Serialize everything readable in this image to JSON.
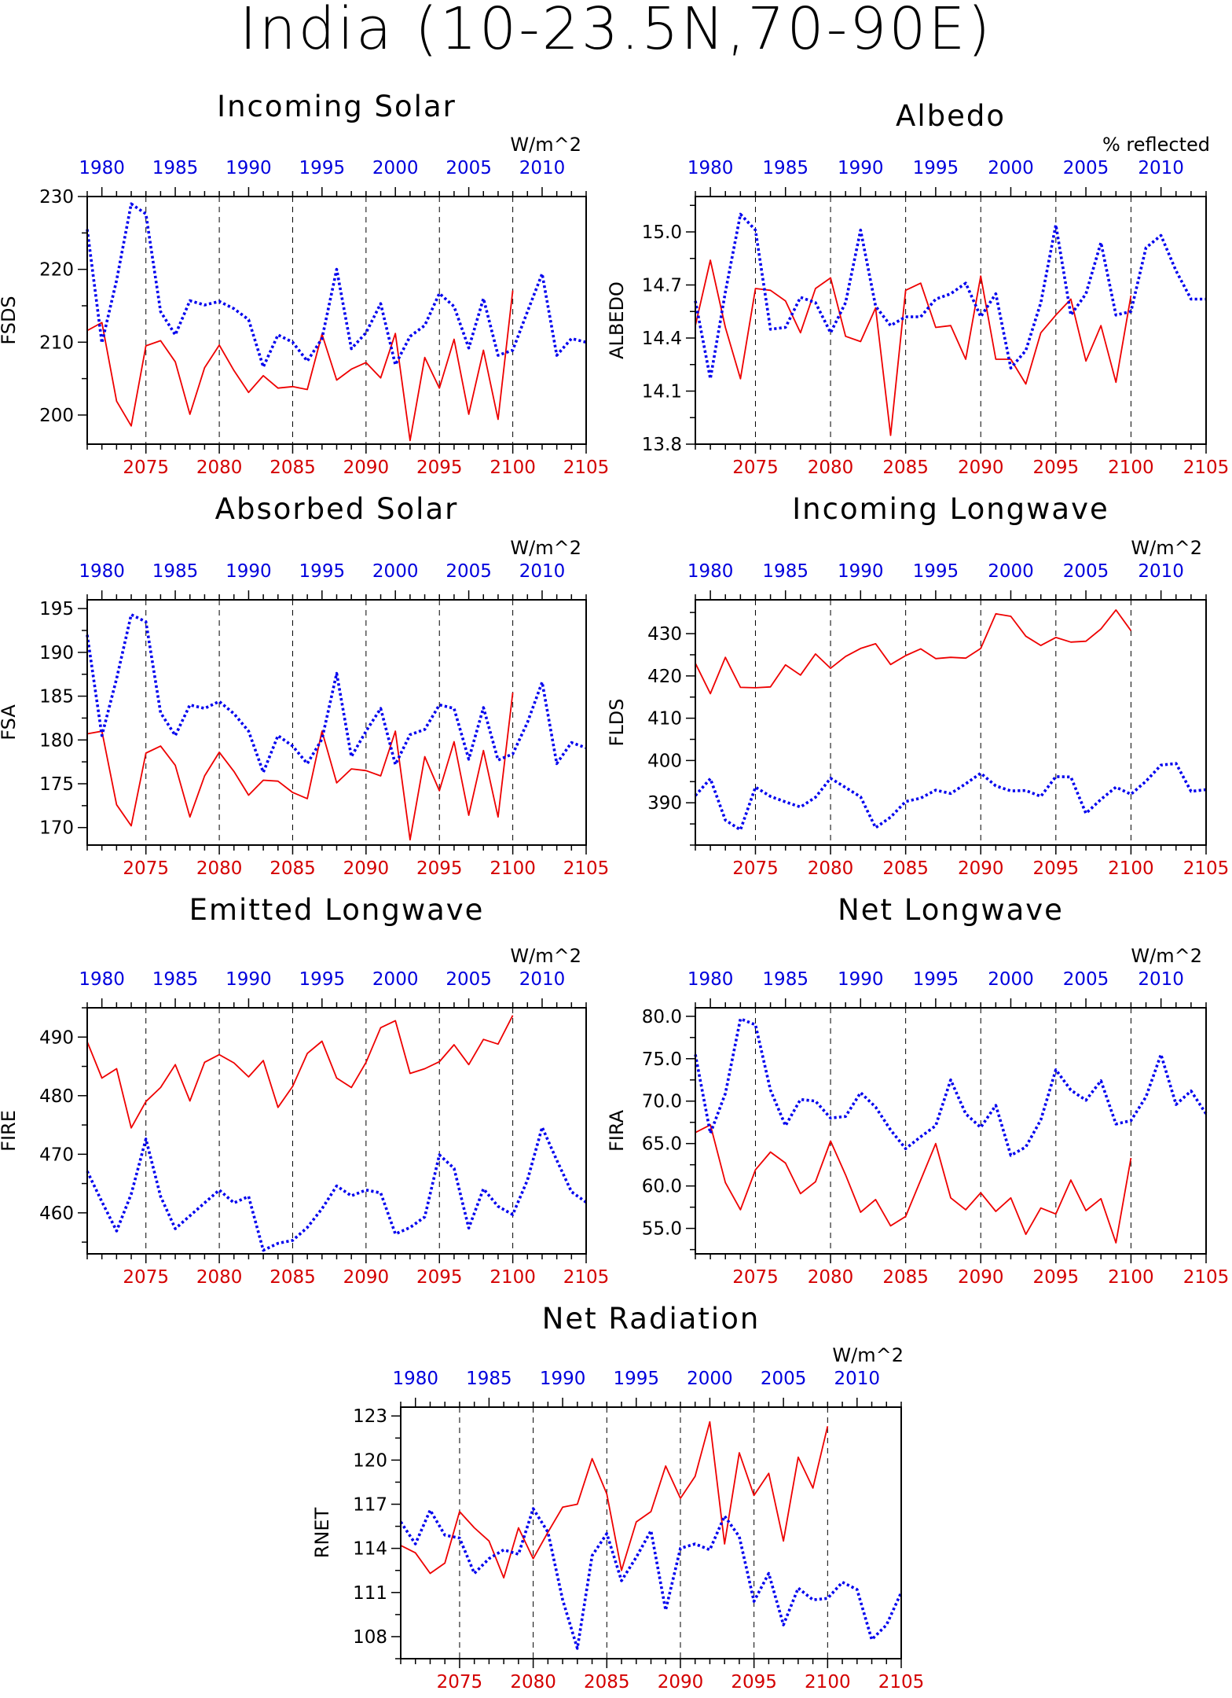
{
  "title": "India (10-23.5N,70-90E)",
  "colors": {
    "future": "#ee0000",
    "past": "#0000ee",
    "axis": "#000000"
  },
  "chart_data": [
    {
      "type": "line",
      "title": "Incoming Solar",
      "units": "W/m^2",
      "ylabel": "FSDS",
      "ylim": [
        196,
        230
      ],
      "yticks": [
        200,
        210,
        220,
        230
      ],
      "ytick_labels": [
        "200",
        "210",
        "220",
        "230"
      ],
      "x_bottom": {
        "range": [
          2071,
          2105
        ],
        "ticks": [
          2075,
          2080,
          2085,
          2090,
          2095,
          2100,
          2105
        ]
      },
      "x_top": {
        "range": [
          1979,
          2013
        ],
        "ticks": [
          1980,
          1985,
          1990,
          1995,
          2000,
          2005,
          2010
        ]
      },
      "series": [
        {
          "period": "2071-2100",
          "axis": "bottom",
          "style": "solid",
          "values": [
            211.6,
            212.7,
            201.9,
            198.5,
            209.5,
            210.2,
            207.3,
            200.1,
            206.5,
            209.6,
            206.1,
            203.1,
            205.4,
            203.7,
            203.9,
            203.5,
            211.1,
            204.8,
            206.3,
            207.2,
            205.1,
            211.2,
            196.5,
            207.9,
            203.7,
            210.4,
            200.1,
            208.9,
            199.4,
            217.1
          ]
        },
        {
          "period": "1979-2013",
          "axis": "top",
          "style": "dotted",
          "values": [
            225.5,
            209.9,
            218.5,
            229.0,
            227.6,
            214.2,
            211.0,
            215.7,
            215.1,
            215.6,
            214.6,
            213.1,
            206.6,
            211.0,
            210.0,
            207.4,
            210.5,
            220.0,
            209.1,
            211.3,
            215.3,
            206.9,
            210.8,
            212.3,
            216.7,
            214.9,
            209.2,
            216.0,
            208.2,
            208.9,
            214.2,
            219.4,
            208.2,
            210.5,
            210.0
          ]
        }
      ]
    },
    {
      "type": "line",
      "title": "Albedo",
      "units": "% reflected",
      "ylabel": "ALBEDO",
      "ylim": [
        13.8,
        15.2
      ],
      "yticks": [
        13.8,
        14.1,
        14.4,
        14.7,
        15.0
      ],
      "ytick_labels": [
        "13.8",
        "14.1",
        "14.4",
        "14.7",
        "15.0"
      ],
      "x_bottom": {
        "range": [
          2071,
          2105
        ],
        "ticks": [
          2075,
          2080,
          2085,
          2090,
          2095,
          2100,
          2105
        ]
      },
      "x_top": {
        "range": [
          1979,
          2013
        ],
        "ticks": [
          1980,
          1985,
          1990,
          1995,
          2000,
          2005,
          2010
        ]
      },
      "series": [
        {
          "period": "2071-2100",
          "axis": "bottom",
          "style": "solid",
          "values": [
            14.47,
            14.84,
            14.46,
            14.17,
            14.68,
            14.67,
            14.61,
            14.43,
            14.68,
            14.74,
            14.41,
            14.38,
            14.57,
            13.85,
            14.67,
            14.71,
            14.46,
            14.47,
            14.28,
            14.75,
            14.28,
            14.28,
            14.14,
            14.43,
            14.53,
            14.62,
            14.27,
            14.47,
            14.15,
            14.64
          ]
        },
        {
          "period": "1979-2013",
          "axis": "top",
          "style": "dotted",
          "values": [
            14.61,
            14.17,
            14.66,
            15.1,
            15.01,
            14.45,
            14.46,
            14.63,
            14.6,
            14.43,
            14.6,
            15.01,
            14.58,
            14.47,
            14.52,
            14.52,
            14.62,
            14.65,
            14.71,
            14.52,
            14.65,
            14.23,
            14.33,
            14.6,
            15.04,
            14.53,
            14.65,
            14.94,
            14.53,
            14.55,
            14.91,
            14.98,
            14.78,
            14.62,
            14.62
          ]
        }
      ]
    },
    {
      "type": "line",
      "title": "Absorbed Solar",
      "units": "W/m^2",
      "ylabel": "FSA",
      "ylim": [
        168,
        196
      ],
      "yticks": [
        170,
        175,
        180,
        185,
        190,
        195
      ],
      "ytick_labels": [
        "170",
        "175",
        "180",
        "185",
        "190",
        "195"
      ],
      "x_bottom": {
        "range": [
          2071,
          2105
        ],
        "ticks": [
          2075,
          2080,
          2085,
          2090,
          2095,
          2100,
          2105
        ]
      },
      "x_top": {
        "range": [
          1979,
          2013
        ],
        "ticks": [
          1980,
          1985,
          1990,
          1995,
          2000,
          2005,
          2010
        ]
      },
      "series": [
        {
          "period": "2071-2100",
          "axis": "bottom",
          "style": "solid",
          "values": [
            180.7,
            181.0,
            172.6,
            170.2,
            178.5,
            179.3,
            177.1,
            171.2,
            175.9,
            178.6,
            176.4,
            173.7,
            175.4,
            175.3,
            174.0,
            173.3,
            181.0,
            175.1,
            176.7,
            176.5,
            175.9,
            181.0,
            168.6,
            178.1,
            174.2,
            179.8,
            171.4,
            178.8,
            171.2,
            185.4
          ]
        },
        {
          "period": "1979-2013",
          "axis": "top",
          "style": "dotted",
          "values": [
            192.0,
            180.5,
            187.0,
            194.3,
            193.5,
            183.1,
            180.5,
            184.0,
            183.6,
            184.4,
            183.0,
            181.0,
            176.3,
            180.5,
            179.3,
            177.3,
            180.1,
            187.6,
            178.1,
            181.0,
            183.6,
            177.2,
            180.6,
            181.2,
            184.0,
            183.6,
            177.8,
            183.7,
            177.7,
            178.4,
            182.0,
            186.6,
            177.3,
            179.7,
            179.1
          ]
        }
      ]
    },
    {
      "type": "line",
      "title": "Incoming Longwave",
      "units": "W/m^2",
      "ylabel": "FLDS",
      "ylim": [
        380,
        438
      ],
      "yticks": [
        390,
        400,
        410,
        420,
        430
      ],
      "ytick_labels": [
        "390",
        "400",
        "410",
        "420",
        "430"
      ],
      "x_bottom": {
        "range": [
          2071,
          2105
        ],
        "ticks": [
          2075,
          2080,
          2085,
          2090,
          2095,
          2100,
          2105
        ]
      },
      "x_top": {
        "range": [
          1979,
          2013
        ],
        "ticks": [
          1980,
          1985,
          1990,
          1995,
          2000,
          2005,
          2010
        ]
      },
      "series": [
        {
          "period": "2071-2100",
          "axis": "bottom",
          "style": "solid",
          "values": [
            423.0,
            415.8,
            424.4,
            417.3,
            417.2,
            417.4,
            422.6,
            420.2,
            425.2,
            421.8,
            424.6,
            426.5,
            427.6,
            422.7,
            424.8,
            426.4,
            424.1,
            424.4,
            424.2,
            426.5,
            434.7,
            434.1,
            429.4,
            427.2,
            429.1,
            428.0,
            428.2,
            431.1,
            435.6,
            430.7
          ]
        },
        {
          "period": "1979-2013",
          "axis": "top",
          "style": "dotted",
          "values": [
            391.7,
            395.7,
            385.9,
            383.6,
            393.7,
            391.5,
            390.2,
            389.0,
            391.3,
            395.8,
            393.6,
            391.4,
            384.1,
            386.6,
            390.3,
            391.1,
            393.0,
            392.2,
            394.5,
            397.0,
            394.0,
            392.8,
            392.9,
            391.5,
            396.2,
            396.1,
            387.5,
            390.8,
            393.7,
            392.0,
            395.1,
            398.9,
            399.3,
            392.7,
            393.1
          ]
        }
      ]
    },
    {
      "type": "line",
      "title": "Emitted Longwave",
      "units": "W/m^2",
      "ylabel": "FIRE",
      "ylim": [
        453,
        495
      ],
      "yticks": [
        460,
        470,
        480,
        490
      ],
      "ytick_labels": [
        "460",
        "470",
        "480",
        "490"
      ],
      "x_bottom": {
        "range": [
          2071,
          2105
        ],
        "ticks": [
          2075,
          2080,
          2085,
          2090,
          2095,
          2100,
          2105
        ]
      },
      "x_top": {
        "range": [
          1979,
          2013
        ],
        "ticks": [
          1980,
          1985,
          1990,
          1995,
          2000,
          2005,
          2010
        ]
      },
      "series": [
        {
          "period": "2071-2100",
          "axis": "bottom",
          "style": "solid",
          "values": [
            489.2,
            483.0,
            484.6,
            474.5,
            479.0,
            481.4,
            485.3,
            479.1,
            485.7,
            487.0,
            485.6,
            483.2,
            486.0,
            478.0,
            481.6,
            487.2,
            489.3,
            483.0,
            481.4,
            485.7,
            491.6,
            492.8,
            483.8,
            484.6,
            485.8,
            488.7,
            485.3,
            489.6,
            488.8,
            493.7
          ]
        },
        {
          "period": "1979-2013",
          "axis": "top",
          "style": "dotted",
          "values": [
            467.1,
            461.9,
            456.9,
            463.2,
            472.6,
            462.8,
            457.3,
            459.5,
            461.7,
            463.9,
            461.7,
            462.8,
            453.6,
            454.8,
            455.3,
            457.5,
            460.7,
            464.6,
            462.9,
            463.9,
            463.4,
            456.4,
            457.5,
            459.3,
            469.9,
            467.6,
            457.4,
            464.1,
            461.1,
            459.7,
            465.6,
            474.6,
            469.0,
            463.6,
            461.8
          ]
        }
      ]
    },
    {
      "type": "line",
      "title": "Net Longwave",
      "units": "W/m^2",
      "ylabel": "FIRA",
      "ylim": [
        52,
        81
      ],
      "yticks": [
        55,
        60,
        65,
        70,
        75,
        80
      ],
      "ytick_labels": [
        "55.0",
        "60.0",
        "65.0",
        "70.0",
        "75.0",
        "80.0"
      ],
      "x_bottom": {
        "range": [
          2071,
          2105
        ],
        "ticks": [
          2075,
          2080,
          2085,
          2090,
          2095,
          2100,
          2105
        ]
      },
      "x_top": {
        "range": [
          1979,
          2013
        ],
        "ticks": [
          1980,
          1985,
          1990,
          1995,
          2000,
          2005,
          2010
        ]
      },
      "series": [
        {
          "period": "2071-2100",
          "axis": "bottom",
          "style": "solid",
          "values": [
            66.3,
            67.2,
            60.4,
            57.2,
            61.9,
            64.0,
            62.7,
            59.1,
            60.5,
            65.3,
            61.3,
            56.9,
            58.4,
            55.3,
            56.4,
            60.7,
            65.0,
            58.6,
            57.2,
            59.2,
            57.0,
            58.6,
            54.3,
            57.4,
            56.7,
            60.7,
            57.1,
            58.5,
            53.3,
            63.3
          ]
        },
        {
          "period": "1979-2013",
          "axis": "top",
          "style": "dotted",
          "values": [
            75.5,
            66.2,
            70.9,
            79.7,
            79.0,
            71.3,
            67.1,
            70.2,
            70.0,
            68.0,
            68.2,
            71.0,
            69.3,
            66.6,
            64.4,
            65.8,
            67.1,
            72.5,
            68.5,
            66.9,
            69.5,
            63.6,
            64.6,
            67.8,
            73.7,
            71.3,
            70.1,
            72.4,
            67.3,
            67.7,
            70.5,
            75.5,
            69.6,
            71.2,
            68.5
          ]
        }
      ]
    },
    {
      "type": "line",
      "title": "Net Radiation",
      "units": "W/m^2",
      "ylabel": "RNET",
      "ylim": [
        106.5,
        123.6
      ],
      "yticks": [
        108,
        111,
        114,
        117,
        120,
        123
      ],
      "ytick_labels": [
        "108",
        "111",
        "114",
        "117",
        "120",
        "123"
      ],
      "x_bottom": {
        "range": [
          2071,
          2105
        ],
        "ticks": [
          2075,
          2080,
          2085,
          2090,
          2095,
          2100,
          2105
        ]
      },
      "x_top": {
        "range": [
          1979,
          2013
        ],
        "ticks": [
          1980,
          1985,
          1990,
          1995,
          2000,
          2005,
          2010
        ]
      },
      "series": [
        {
          "period": "2071-2100",
          "axis": "bottom",
          "style": "solid",
          "values": [
            114.2,
            113.7,
            112.3,
            113.0,
            116.5,
            115.4,
            114.5,
            112.0,
            115.4,
            113.3,
            115.1,
            116.8,
            117.0,
            120.1,
            117.7,
            112.5,
            115.8,
            116.5,
            119.6,
            117.4,
            118.9,
            122.6,
            114.3,
            120.5,
            117.6,
            119.1,
            114.5,
            120.2,
            118.1,
            122.3
          ]
        },
        {
          "period": "1979-2013",
          "axis": "top",
          "style": "dotted",
          "values": [
            115.8,
            114.3,
            116.6,
            114.9,
            114.7,
            112.3,
            113.3,
            113.9,
            113.6,
            116.7,
            115.1,
            110.5,
            107.2,
            113.5,
            115.0,
            111.8,
            113.4,
            115.2,
            109.8,
            114.0,
            114.3,
            113.9,
            116.2,
            114.8,
            110.4,
            112.3,
            108.8,
            111.3,
            110.5,
            110.6,
            111.7,
            111.2,
            107.8,
            108.8,
            111.0
          ]
        }
      ]
    }
  ]
}
